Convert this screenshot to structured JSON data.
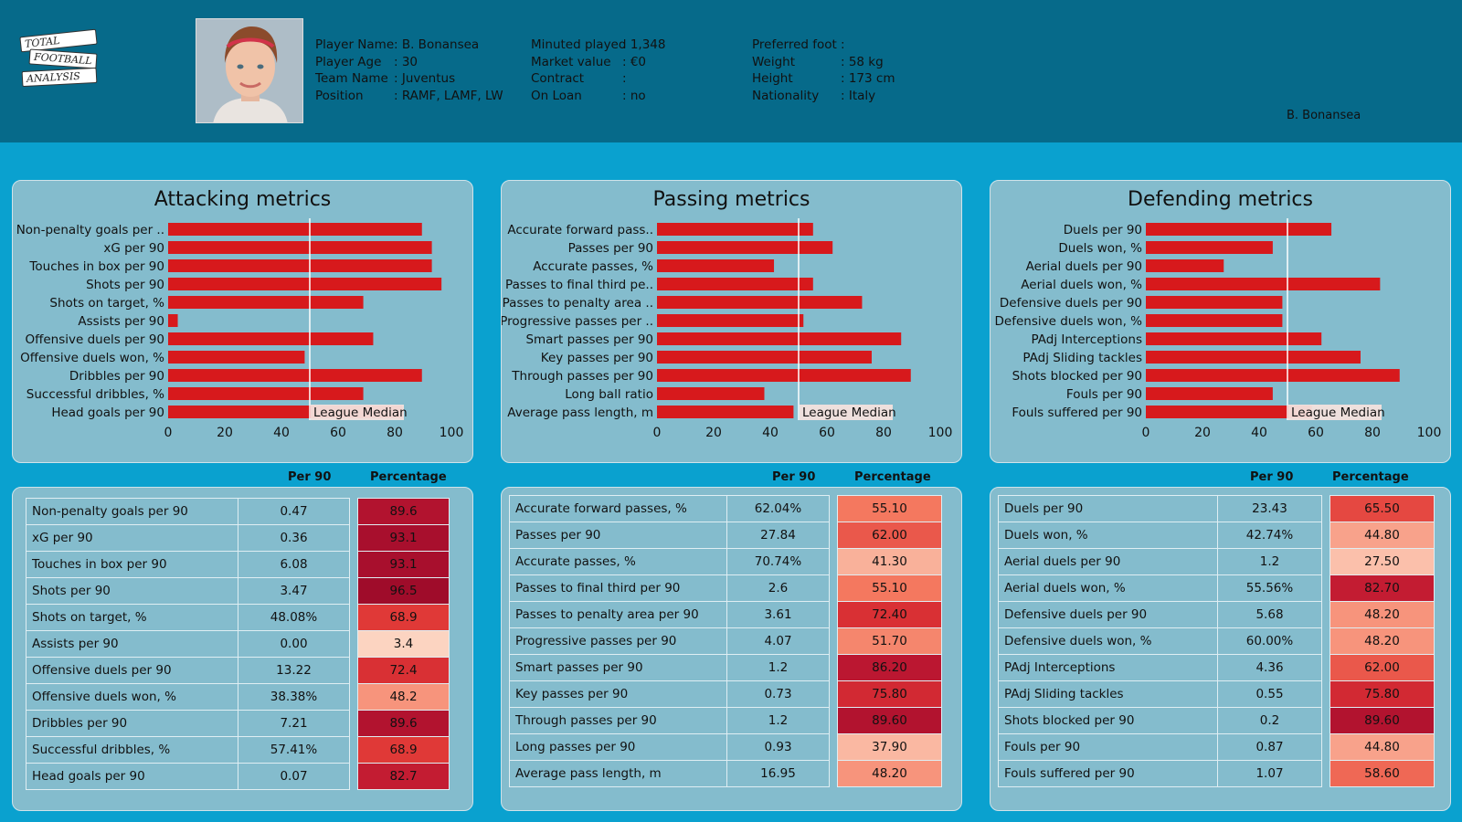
{
  "logo": {
    "line1": "TOTAL",
    "line2": "FOOTBALL",
    "line3": "ANALYSIS"
  },
  "player": {
    "col1": [
      {
        "label": "Player Name",
        "value": ": B. Bonansea"
      },
      {
        "label": "Player Age",
        "value": ": 30"
      },
      {
        "label": "Team Name",
        "value": ": Juventus"
      },
      {
        "label": "Position",
        "value": ": RAMF, LAMF, LW"
      }
    ],
    "col2": [
      {
        "label": "Minuted played",
        "value": ": 1,348"
      },
      {
        "label": "Market value",
        "value": ": €0"
      },
      {
        "label": "Contract",
        "value": ":"
      },
      {
        "label": "On Loan",
        "value": ": no"
      }
    ],
    "col3": [
      {
        "label": "Preferred foot",
        "value": ":"
      },
      {
        "label": "Weight",
        "value": ": 58 kg"
      },
      {
        "label": "Height",
        "value": ": 173 cm"
      },
      {
        "label": "Nationality",
        "value": ": Italy"
      }
    ],
    "corner_name": "B. Bonansea"
  },
  "colors": {
    "bar": "#d7191c",
    "median_line": "#ffffff",
    "panel": "#84bccd"
  },
  "chart_data": [
    {
      "type": "bar",
      "orientation": "horizontal",
      "title": "Attacking metrics",
      "categories": [
        "Non-penalty goals per ..",
        "xG per 90",
        "Touches in box per 90",
        "Shots per 90",
        "Shots on target, %",
        "Assists per 90",
        "Offensive duels per 90",
        "Offensive duels won, %",
        "Dribbles per 90",
        "Successful dribbles, %",
        "Head goals per 90"
      ],
      "values": [
        89.6,
        93.1,
        93.1,
        96.5,
        68.9,
        3.4,
        72.4,
        48.2,
        89.6,
        68.9,
        82.7
      ],
      "xlim": [
        0,
        100
      ],
      "xticks": [
        "0",
        "20",
        "40",
        "60",
        "80",
        "100"
      ],
      "median": 50,
      "median_label": "League Median"
    },
    {
      "type": "bar",
      "orientation": "horizontal",
      "title": "Passing metrics",
      "categories": [
        "Accurate forward pass..",
        "Passes per 90",
        "Accurate passes, %",
        "Passes to final third pe..",
        "Passes to penalty area ..",
        "Progressive passes per ..",
        "Smart passes per 90",
        "Key passes per 90",
        "Through passes per 90",
        "Long ball ratio",
        "Average pass length, m"
      ],
      "values": [
        55.1,
        62.0,
        41.3,
        55.1,
        72.4,
        51.7,
        86.2,
        75.8,
        89.6,
        37.9,
        48.2
      ],
      "xlim": [
        0,
        100
      ],
      "xticks": [
        "0",
        "20",
        "40",
        "60",
        "80",
        "100"
      ],
      "median": 50,
      "median_label": "League Median"
    },
    {
      "type": "bar",
      "orientation": "horizontal",
      "title": "Defending metrics",
      "categories": [
        "Duels per 90",
        "Duels won, %",
        "Aerial duels per 90",
        "Aerial duels won, %",
        "Defensive duels per 90",
        "Defensive duels won, %",
        "PAdj Interceptions",
        "PAdj Sliding tackles",
        "Shots blocked per 90",
        "Fouls per 90",
        "Fouls suffered per 90"
      ],
      "values": [
        65.5,
        44.8,
        27.5,
        82.7,
        48.2,
        48.2,
        62.0,
        75.8,
        89.6,
        44.8,
        58.6
      ],
      "xlim": [
        0,
        100
      ],
      "xticks": [
        "0",
        "20",
        "40",
        "60",
        "80",
        "100"
      ],
      "median": 50,
      "median_label": "League Median"
    },
    {
      "type": "table",
      "columns": [
        "",
        "Per 90",
        "Percentage"
      ],
      "rows": [
        {
          "name": "Non-penalty goals per 90",
          "per90": "0.47",
          "pct": "89.6",
          "v": 89.6
        },
        {
          "name": "xG per 90",
          "per90": "0.36",
          "pct": "93.1",
          "v": 93.1
        },
        {
          "name": "Touches in box per 90",
          "per90": "6.08",
          "pct": "93.1",
          "v": 93.1
        },
        {
          "name": "Shots per 90",
          "per90": "3.47",
          "pct": "96.5",
          "v": 96.5
        },
        {
          "name": "Shots on target, %",
          "per90": "48.08%",
          "pct": "68.9",
          "v": 68.9
        },
        {
          "name": "Assists per 90",
          "per90": "0.00",
          "pct": "3.4",
          "v": 3.4
        },
        {
          "name": "Offensive duels per 90",
          "per90": "13.22",
          "pct": "72.4",
          "v": 72.4
        },
        {
          "name": "Offensive duels won, %",
          "per90": "38.38%",
          "pct": "48.2",
          "v": 48.2
        },
        {
          "name": "Dribbles per 90",
          "per90": "7.21",
          "pct": "89.6",
          "v": 89.6
        },
        {
          "name": "Successful dribbles, %",
          "per90": "57.41%",
          "pct": "68.9",
          "v": 68.9
        },
        {
          "name": "Head goals per 90",
          "per90": "0.07",
          "pct": "82.7",
          "v": 82.7
        }
      ]
    },
    {
      "type": "table",
      "columns": [
        "",
        "Per 90",
        "Percentage"
      ],
      "rows": [
        {
          "name": "Accurate forward passes, %",
          "per90": "62.04%",
          "pct": "55.10",
          "v": 55.1
        },
        {
          "name": "Passes per 90",
          "per90": "27.84",
          "pct": "62.00",
          "v": 62.0
        },
        {
          "name": "Accurate passes, %",
          "per90": "70.74%",
          "pct": "41.30",
          "v": 41.3
        },
        {
          "name": "Passes to final third per 90",
          "per90": "2.6",
          "pct": "55.10",
          "v": 55.1
        },
        {
          "name": "Passes to penalty area per 90",
          "per90": "3.61",
          "pct": "72.40",
          "v": 72.4
        },
        {
          "name": "Progressive passes per 90",
          "per90": "4.07",
          "pct": "51.70",
          "v": 51.7
        },
        {
          "name": "Smart passes per 90",
          "per90": "1.2",
          "pct": "86.20",
          "v": 86.2
        },
        {
          "name": "Key passes per 90",
          "per90": "0.73",
          "pct": "75.80",
          "v": 75.8
        },
        {
          "name": "Through passes per 90",
          "per90": "1.2",
          "pct": "89.60",
          "v": 89.6
        },
        {
          "name": "Long passes per 90",
          "per90": "0.93",
          "pct": "37.90",
          "v": 37.9
        },
        {
          "name": "Average pass length, m",
          "per90": "16.95",
          "pct": "48.20",
          "v": 48.2
        }
      ]
    },
    {
      "type": "table",
      "columns": [
        "",
        "Per 90",
        "Percentage"
      ],
      "rows": [
        {
          "name": "Duels per 90",
          "per90": "23.43",
          "pct": "65.50",
          "v": 65.5
        },
        {
          "name": "Duels won, %",
          "per90": "42.74%",
          "pct": "44.80",
          "v": 44.8
        },
        {
          "name": "Aerial duels per 90",
          "per90": "1.2",
          "pct": "27.50",
          "v": 27.5
        },
        {
          "name": "Aerial duels won, %",
          "per90": "55.56%",
          "pct": "82.70",
          "v": 82.7
        },
        {
          "name": "Defensive duels per 90",
          "per90": "5.68",
          "pct": "48.20",
          "v": 48.2
        },
        {
          "name": "Defensive duels won, %",
          "per90": "60.00%",
          "pct": "48.20",
          "v": 48.2
        },
        {
          "name": "PAdj Interceptions",
          "per90": "4.36",
          "pct": "62.00",
          "v": 62.0
        },
        {
          "name": "PAdj Sliding tackles",
          "per90": "0.55",
          "pct": "75.80",
          "v": 75.8
        },
        {
          "name": "Shots blocked per 90",
          "per90": "0.2",
          "pct": "89.60",
          "v": 89.6
        },
        {
          "name": "Fouls per 90",
          "per90": "0.87",
          "pct": "44.80",
          "v": 44.8
        },
        {
          "name": "Fouls suffered per 90",
          "per90": "1.07",
          "pct": "58.60",
          "v": 58.6
        }
      ]
    }
  ]
}
